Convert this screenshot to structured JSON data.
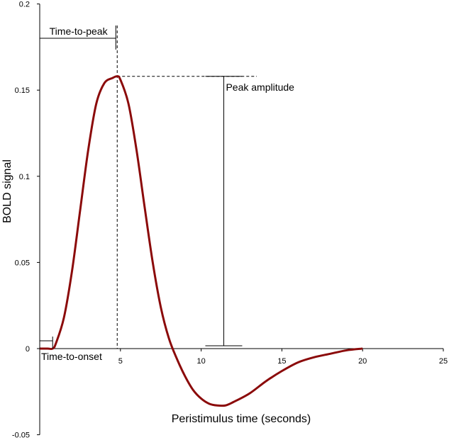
{
  "chart_data": {
    "type": "line",
    "title": "",
    "xlabel": "Peristimulus time (seconds)",
    "ylabel": "BOLD signal",
    "xlim": [
      0,
      25
    ],
    "ylim": [
      -0.05,
      0.2
    ],
    "x_ticks": [
      5,
      10,
      15,
      20,
      25
    ],
    "x_tick_labels": [
      "5",
      "10",
      "15",
      "20",
      "25"
    ],
    "y_ticks": [
      -0.05,
      0,
      0.05,
      0.1,
      0.15,
      0.2
    ],
    "y_tick_labels": [
      "-0.05",
      "0",
      "0.05",
      "0.1",
      "0.15",
      "0.2"
    ],
    "grid": false,
    "legend": "none",
    "series": [
      {
        "color": "#8b0a0a",
        "x": [
          0,
          0.5,
          0.8,
          1.0,
          1.5,
          2.0,
          2.5,
          3.0,
          3.5,
          4.0,
          4.5,
          4.8,
          5.0,
          5.5,
          6.0,
          6.5,
          7.0,
          7.5,
          8.0,
          8.5,
          9.0,
          9.5,
          10.0,
          10.5,
          11.0,
          11.5,
          12.0,
          13.0,
          14.0,
          15.0,
          16.0,
          17.0,
          18.0,
          19.0,
          20.0
        ],
        "y": [
          0,
          0,
          0,
          0.003,
          0.018,
          0.045,
          0.08,
          0.115,
          0.142,
          0.154,
          0.157,
          0.158,
          0.156,
          0.142,
          0.115,
          0.082,
          0.05,
          0.024,
          0.006,
          -0.006,
          -0.016,
          -0.024,
          -0.029,
          -0.032,
          -0.033,
          -0.033,
          -0.031,
          -0.026,
          -0.019,
          -0.013,
          -0.008,
          -0.005,
          -0.003,
          -0.001,
          0
        ]
      }
    ],
    "annotations": [
      {
        "text": "Time-to-peak",
        "x_start": 0,
        "x_end": 4.8
      },
      {
        "text": "Time-to-onset",
        "x_start": 0,
        "x_end": 0.8
      },
      {
        "text": "Peak amplitude",
        "x": 11.4,
        "y_start": 0,
        "y_end": 0.158
      }
    ]
  }
}
